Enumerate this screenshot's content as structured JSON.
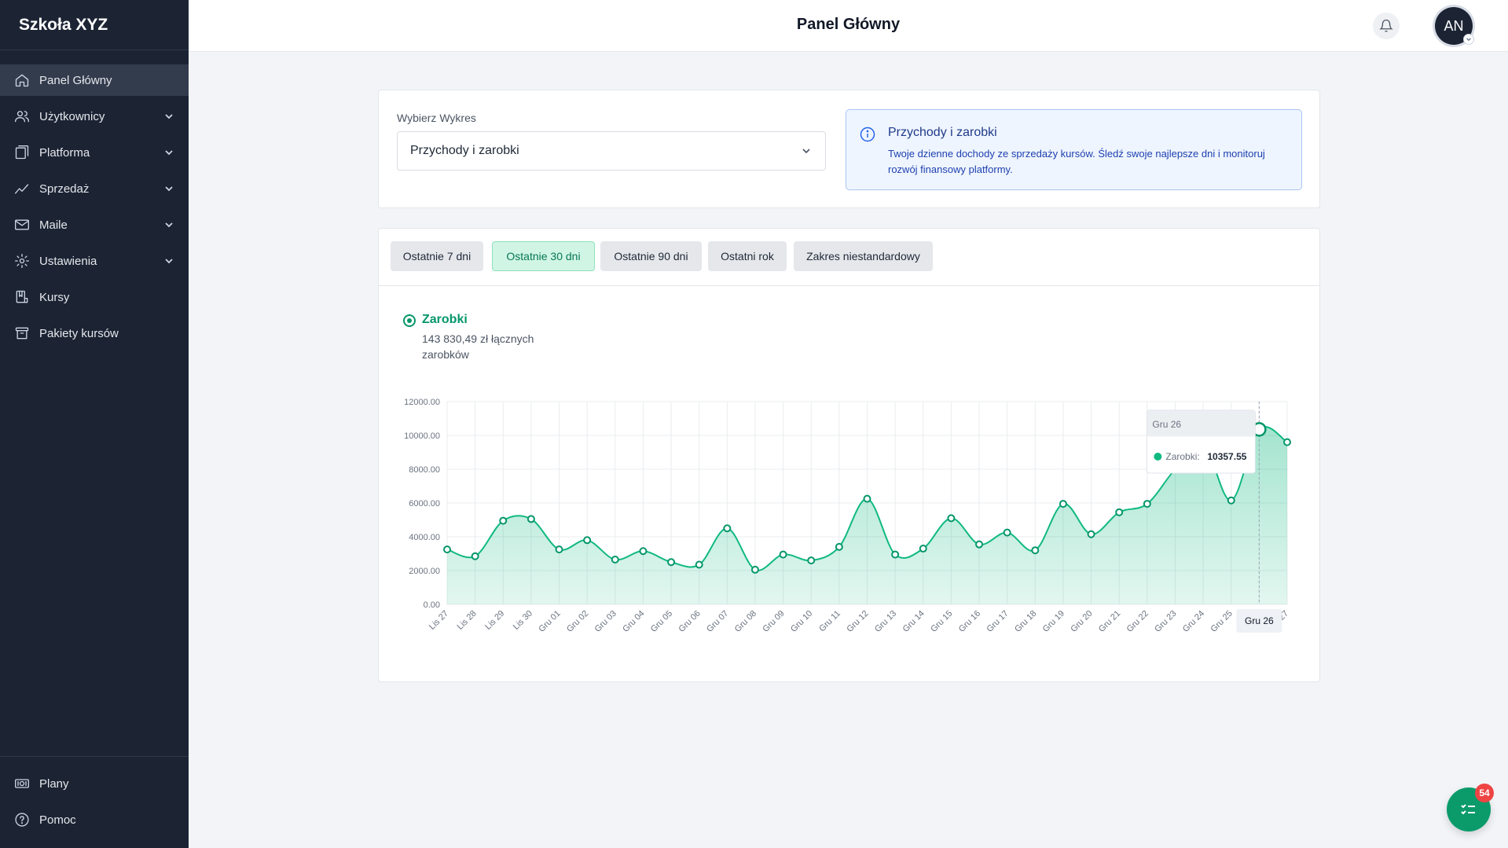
{
  "app": {
    "brand": "Szkoła XYZ",
    "page_title": "Panel Główny",
    "user_initials": "AN",
    "notifications_badge": "54"
  },
  "sidebar": {
    "items": [
      {
        "label": "Panel Główny",
        "icon": "home-icon",
        "active": true,
        "expandable": false
      },
      {
        "label": "Użytkownicy",
        "icon": "users-icon",
        "expandable": true
      },
      {
        "label": "Platforma",
        "icon": "layers-icon",
        "expandable": true
      },
      {
        "label": "Sprzedaż",
        "icon": "trend-icon",
        "expandable": true
      },
      {
        "label": "Maile",
        "icon": "mail-icon",
        "expandable": true
      },
      {
        "label": "Ustawienia",
        "icon": "gear-icon",
        "expandable": true
      },
      {
        "label": "Kursy",
        "icon": "course-icon",
        "expandable": false
      },
      {
        "label": "Pakiety kursów",
        "icon": "archive-icon",
        "expandable": false
      }
    ],
    "bottom_items": [
      {
        "label": "Plany",
        "icon": "money-icon"
      },
      {
        "label": "Pomoc",
        "icon": "help-icon"
      }
    ]
  },
  "selector": {
    "label": "Wybierz Wykres",
    "value": "Przychody i zarobki",
    "info_title": "Przychody i zarobki",
    "info_text": "Twoje dzienne dochody ze sprzedaży kursów. Śledź swoje najlepsze dni i monitoruj rozwój finansowy platformy."
  },
  "ranges": [
    {
      "label": "Ostatnie 7 dni",
      "active": false
    },
    {
      "label": "Ostatnie 30 dni",
      "active": true
    },
    {
      "label": "Ostatnie 90 dni",
      "active": false
    },
    {
      "label": "Ostatni rok",
      "active": false
    },
    {
      "label": "Zakres niestandardowy",
      "active": false
    }
  ],
  "series_summary": {
    "name": "Zarobki",
    "total_text": "143 830,49 zł łącznych zarobków"
  },
  "colors": {
    "accent": "#10b981",
    "accent_dark": "#059669",
    "sidebar": "#1c2434"
  },
  "chart_data": {
    "type": "area",
    "x": [
      "Lis 27",
      "Lis 28",
      "Lis 29",
      "Lis 30",
      "Gru 01",
      "Gru 02",
      "Gru 03",
      "Gru 04",
      "Gru 05",
      "Gru 06",
      "Gru 07",
      "Gru 08",
      "Gru 09",
      "Gru 10",
      "Gru 11",
      "Gru 12",
      "Gru 13",
      "Gru 14",
      "Gru 15",
      "Gru 16",
      "Gru 17",
      "Gru 18",
      "Gru 19",
      "Gru 20",
      "Gru 21",
      "Gru 22",
      "Gru 23",
      "Gru 24",
      "Gru 25",
      "Gru 26",
      "Gru 27"
    ],
    "series": [
      {
        "name": "Zarobki",
        "values": [
          3250,
          2850,
          4950,
          5050,
          3250,
          3800,
          2650,
          3150,
          2500,
          2350,
          4500,
          2050,
          2950,
          2600,
          3400,
          6250,
          2950,
          3300,
          5100,
          3550,
          4250,
          3200,
          5950,
          4150,
          5450,
          5950,
          8000,
          9500,
          6150,
          10357.55,
          9600
        ]
      }
    ],
    "y_ticks": [
      "0.00",
      "2000.00",
      "4000.00",
      "6000.00",
      "8000.00",
      "10000.00",
      "12000.00"
    ],
    "ylim": [
      0,
      12000
    ],
    "grid": true,
    "tooltip": {
      "x": "Gru 26",
      "series": "Zarobki:",
      "value": "10357.55"
    },
    "highlight_label": "Gru 26"
  }
}
